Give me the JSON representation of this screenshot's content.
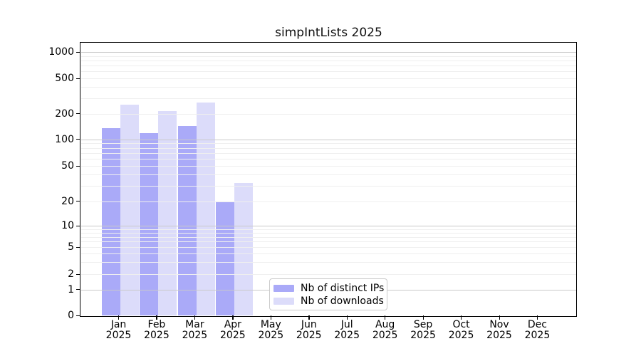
{
  "title": "simpIntLists 2025",
  "legend": {
    "items": [
      {
        "label": "Nb of distinct IPs",
        "color": "#aaaaf8"
      },
      {
        "label": "Nb of downloads",
        "color": "#dcdcfa"
      }
    ]
  },
  "y_axis": {
    "ticks": [
      0,
      1,
      2,
      5,
      10,
      20,
      50,
      100,
      200,
      500,
      1000
    ]
  },
  "x_axis": {
    "months": [
      "Jan",
      "Feb",
      "Mar",
      "Apr",
      "May",
      "Jun",
      "Jul",
      "Aug",
      "Sep",
      "Oct",
      "Nov",
      "Dec"
    ],
    "year": "2025"
  },
  "chart_data": {
    "type": "bar",
    "title": "simpIntLists 2025",
    "categories": [
      "Jan 2025",
      "Feb 2025",
      "Mar 2025",
      "Apr 2025",
      "May 2025",
      "Jun 2025",
      "Jul 2025",
      "Aug 2025",
      "Sep 2025",
      "Oct 2025",
      "Nov 2025",
      "Dec 2025"
    ],
    "series": [
      {
        "name": "Nb of distinct IPs",
        "color": "#aaaaf8",
        "values": [
          135,
          117,
          142,
          20,
          0,
          0,
          0,
          0,
          0,
          0,
          0,
          0
        ]
      },
      {
        "name": "Nb of downloads",
        "color": "#dcdcfa",
        "values": [
          250,
          212,
          268,
          32,
          0,
          0,
          0,
          0,
          0,
          0,
          0,
          0
        ]
      }
    ],
    "xlabel": "",
    "ylabel": "",
    "yscale": "symlog",
    "yticks": [
      0,
      1,
      2,
      5,
      10,
      20,
      50,
      100,
      200,
      500,
      1000
    ],
    "ylim": [
      0,
      1300
    ],
    "grid": true,
    "grid_minor": true,
    "legend_position": "lower center",
    "colors": {
      "major_grid": "#c9c9c9",
      "minor_grid": "#efefef",
      "axis": "#000000",
      "background": "#ffffff"
    }
  }
}
